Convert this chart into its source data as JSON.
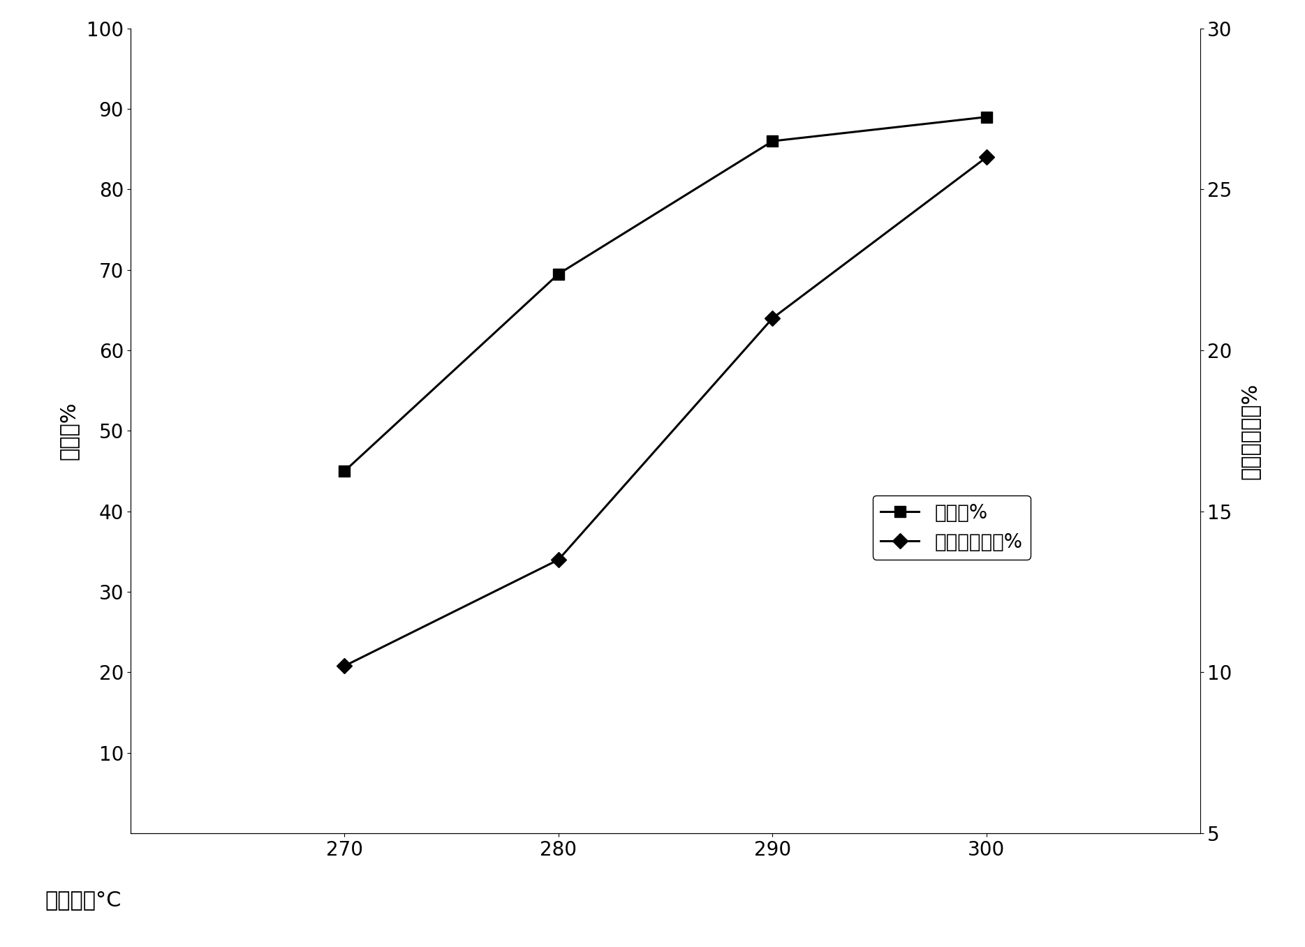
{
  "x": [
    270,
    280,
    290,
    300
  ],
  "desulfurization": [
    45.0,
    69.5,
    86.0,
    89.0
  ],
  "olefin_reduction": [
    10.2,
    13.5,
    21.0,
    26.0
  ],
  "left_ylabel": "脱硫率%",
  "right_ylabel": "烯烃相对降幅%",
  "xlabel": "反应温度°C",
  "left_ylim": [
    0,
    100
  ],
  "right_ylim": [
    5,
    30
  ],
  "left_yticks": [
    10,
    20,
    30,
    40,
    50,
    60,
    70,
    80,
    90,
    100
  ],
  "right_yticks": [
    5,
    10,
    15,
    20,
    25,
    30
  ],
  "xticks": [
    270,
    280,
    290,
    300
  ],
  "legend_label1": "脱硫率%",
  "legend_label2": "烯烃相对降幅%",
  "line_color": "#000000",
  "background_color": "#ffffff",
  "label_fontsize": 22,
  "tick_fontsize": 20,
  "legend_fontsize": 20
}
